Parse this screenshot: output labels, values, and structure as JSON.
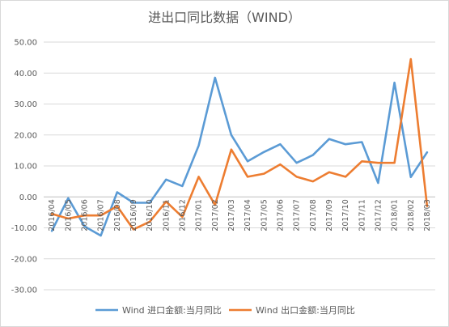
{
  "chart_data": {
    "type": "line",
    "title": "进出口同比数据（WIND）",
    "xlabel": "",
    "ylabel": "",
    "ylim": [
      -30,
      50
    ],
    "ytick_step": 10,
    "ytick_labels": [
      "50.00",
      "40.00",
      "30.00",
      "20.00",
      "10.00",
      "0.00",
      "-10.00",
      "-20.00",
      "-30.00"
    ],
    "grid": true,
    "legend_position": "bottom",
    "categories": [
      "2016/04",
      "2016/05",
      "2016/06",
      "2016/07",
      "2016/08",
      "2016/09",
      "2016/10",
      "2016/11",
      "2016/12",
      "2017/01",
      "2017/02",
      "2017/03",
      "2017/04",
      "2017/05",
      "2017/06",
      "2017/07",
      "2017/08",
      "2017/09",
      "2017/10",
      "2017/11",
      "2017/12",
      "2018/01",
      "2018/02",
      "2018/03"
    ],
    "series": [
      {
        "name": "Wind 进口金额:当月同比",
        "color": "#5B9BD5",
        "values": [
          -11,
          -0.4,
          -9.5,
          -12.5,
          1.5,
          -1.9,
          -1.9,
          5.6,
          3.5,
          16.6,
          38.5,
          20,
          11.5,
          14.5,
          17,
          11,
          13.5,
          18.7,
          17,
          17.7,
          4.5,
          36.9,
          6.4,
          14.4
        ]
      },
      {
        "name": "Wind 出口金额:当月同比",
        "color": "#ED7D31",
        "values": [
          -5.5,
          -7,
          -6,
          -6,
          -3,
          -10.5,
          -8,
          -1.5,
          -6.5,
          6.5,
          -2.6,
          15.3,
          6.5,
          7.5,
          10.5,
          6.5,
          5,
          8,
          6.5,
          11.5,
          11,
          11,
          44.5,
          -3
        ]
      }
    ]
  }
}
